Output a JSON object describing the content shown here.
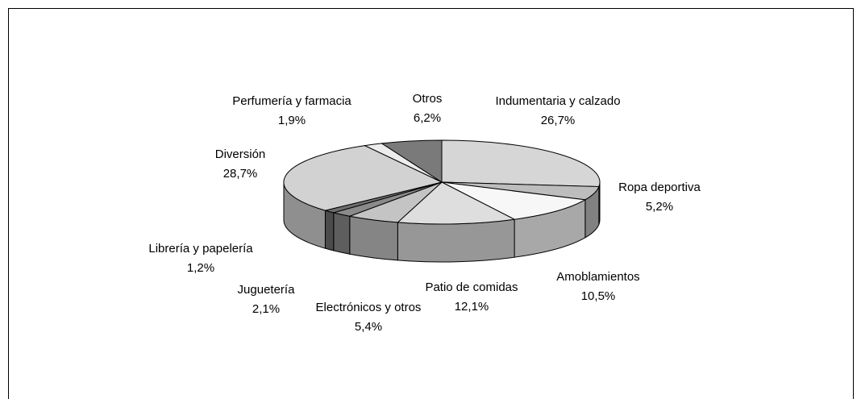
{
  "chart_data": {
    "type": "pie",
    "categories": [
      "Indumentaria y calzado",
      "Ropa deportiva",
      "Amoblamientos",
      "Patio de comidas",
      "Electrónicos y otros",
      "Juguetería",
      "Librería y papelería",
      "Diversión",
      "Perfumería y farmacia",
      "Otros"
    ],
    "values": [
      26.7,
      5.2,
      10.5,
      12.1,
      5.4,
      2.1,
      1.2,
      28.7,
      1.9,
      6.2
    ],
    "value_labels": [
      "26,7%",
      "5,2%",
      "10,5%",
      "12,1%",
      "5,4%",
      "2,1%",
      "1,2%",
      "28,7%",
      "1,9%",
      "6,2%"
    ],
    "colors": [
      "#d6d6d6",
      "#bdbdbd",
      "#f7f7f7",
      "#dedede",
      "#c4c4c4",
      "#8a8a8a",
      "#6e6e6e",
      "#d2d2d2",
      "#ececec",
      "#7a7a7a"
    ]
  }
}
